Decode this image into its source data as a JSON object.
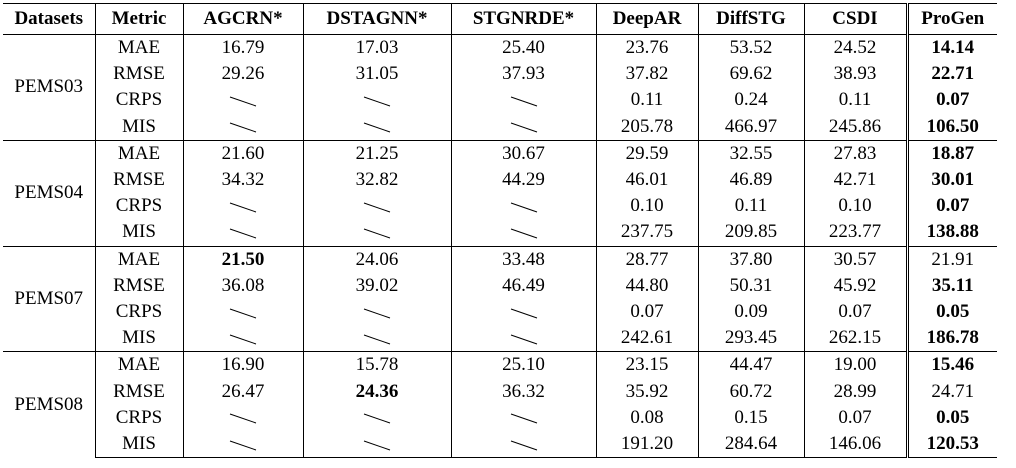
{
  "table": {
    "headers": [
      "Datasets",
      "Metric",
      "AGCRN*",
      "DSTAGNN*",
      "STGNRDE*",
      "DeepAR",
      "DiffSTG",
      "CSDI",
      "ProGen"
    ],
    "dash_symbol_name": "diagonal-dash-icon",
    "groups": [
      {
        "dataset": "PEMS03",
        "rows": [
          {
            "metric": "MAE",
            "values": [
              "16.79",
              "17.03",
              "25.40",
              "23.76",
              "53.52",
              "24.52",
              "14.14"
            ],
            "bold": [
              false,
              false,
              false,
              false,
              false,
              false,
              true
            ]
          },
          {
            "metric": "RMSE",
            "values": [
              "29.26",
              "31.05",
              "37.93",
              "37.82",
              "69.62",
              "38.93",
              "22.71"
            ],
            "bold": [
              false,
              false,
              false,
              false,
              false,
              false,
              true
            ]
          },
          {
            "metric": "CRPS",
            "values": [
              null,
              null,
              null,
              "0.11",
              "0.24",
              "0.11",
              "0.07"
            ],
            "bold": [
              false,
              false,
              false,
              false,
              false,
              false,
              true
            ]
          },
          {
            "metric": "MIS",
            "values": [
              null,
              null,
              null,
              "205.78",
              "466.97",
              "245.86",
              "106.50"
            ],
            "bold": [
              false,
              false,
              false,
              false,
              false,
              false,
              true
            ]
          }
        ]
      },
      {
        "dataset": "PEMS04",
        "rows": [
          {
            "metric": "MAE",
            "values": [
              "21.60",
              "21.25",
              "30.67",
              "29.59",
              "32.55",
              "27.83",
              "18.87"
            ],
            "bold": [
              false,
              false,
              false,
              false,
              false,
              false,
              true
            ]
          },
          {
            "metric": "RMSE",
            "values": [
              "34.32",
              "32.82",
              "44.29",
              "46.01",
              "46.89",
              "42.71",
              "30.01"
            ],
            "bold": [
              false,
              false,
              false,
              false,
              false,
              false,
              true
            ]
          },
          {
            "metric": "CRPS",
            "values": [
              null,
              null,
              null,
              "0.10",
              "0.11",
              "0.10",
              "0.07"
            ],
            "bold": [
              false,
              false,
              false,
              false,
              false,
              false,
              true
            ]
          },
          {
            "metric": "MIS",
            "values": [
              null,
              null,
              null,
              "237.75",
              "209.85",
              "223.77",
              "138.88"
            ],
            "bold": [
              false,
              false,
              false,
              false,
              false,
              false,
              true
            ]
          }
        ]
      },
      {
        "dataset": "PEMS07",
        "rows": [
          {
            "metric": "MAE",
            "values": [
              "21.50",
              "24.06",
              "33.48",
              "28.77",
              "37.80",
              "30.57",
              "21.91"
            ],
            "bold": [
              true,
              false,
              false,
              false,
              false,
              false,
              false
            ]
          },
          {
            "metric": "RMSE",
            "values": [
              "36.08",
              "39.02",
              "46.49",
              "44.80",
              "50.31",
              "45.92",
              "35.11"
            ],
            "bold": [
              false,
              false,
              false,
              false,
              false,
              false,
              true
            ]
          },
          {
            "metric": "CRPS",
            "values": [
              null,
              null,
              null,
              "0.07",
              "0.09",
              "0.07",
              "0.05"
            ],
            "bold": [
              false,
              false,
              false,
              false,
              false,
              false,
              true
            ]
          },
          {
            "metric": "MIS",
            "values": [
              null,
              null,
              null,
              "242.61",
              "293.45",
              "262.15",
              "186.78"
            ],
            "bold": [
              false,
              false,
              false,
              false,
              false,
              false,
              true
            ]
          }
        ]
      },
      {
        "dataset": "PEMS08",
        "rows": [
          {
            "metric": "MAE",
            "values": [
              "16.90",
              "15.78",
              "25.10",
              "23.15",
              "44.47",
              "19.00",
              "15.46"
            ],
            "bold": [
              false,
              false,
              false,
              false,
              false,
              false,
              true
            ]
          },
          {
            "metric": "RMSE",
            "values": [
              "26.47",
              "24.36",
              "36.32",
              "35.92",
              "60.72",
              "28.99",
              "24.71"
            ],
            "bold": [
              false,
              true,
              false,
              false,
              false,
              false,
              false
            ]
          },
          {
            "metric": "CRPS",
            "values": [
              null,
              null,
              null,
              "0.08",
              "0.15",
              "0.07",
              "0.05"
            ],
            "bold": [
              false,
              false,
              false,
              false,
              false,
              false,
              true
            ]
          },
          {
            "metric": "MIS",
            "values": [
              null,
              null,
              null,
              "191.20",
              "284.64",
              "146.06",
              "120.53"
            ],
            "bold": [
              false,
              false,
              false,
              false,
              false,
              false,
              true
            ]
          }
        ]
      }
    ]
  }
}
